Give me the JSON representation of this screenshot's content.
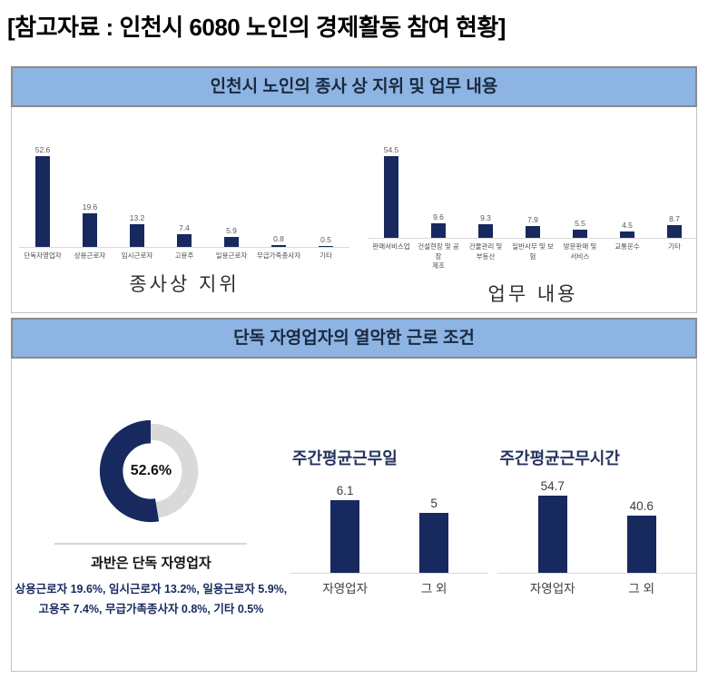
{
  "page": {
    "title": "[참고자료 : 인천시 6080 노인의 경제활동 참여 현황]"
  },
  "colors": {
    "navy": "#17295e",
    "header_bg": "#8db4e2",
    "ring_gray": "#d9d9d9"
  },
  "section1": {
    "header": "인천시 노인의 종사 상 지위 및 업무 내용"
  },
  "section2": {
    "header": "단독 자영업자의 열악한 근로 조건"
  },
  "chart_data": [
    {
      "id": "status",
      "type": "bar",
      "title": "종사상 지위",
      "categories": [
        "단독자영업자",
        "상용근로자",
        "임시근로자",
        "고용주",
        "일용근로자",
        "무급가족종사자",
        "기타"
      ],
      "values": [
        52.6,
        19.6,
        13.2,
        7.4,
        5.9,
        0.8,
        0.5
      ],
      "ylim": [
        0,
        55
      ],
      "bar_color": "#17295e",
      "grid": false,
      "value_labels": true
    },
    {
      "id": "work",
      "type": "bar",
      "title": "업무 내용",
      "categories": [
        "판매서비스업",
        "건설현장 및 공장\n제조",
        "건물관리 및\n부동산",
        "일반사무 및 보험",
        "방문판매 및\n서비스",
        "교통운수",
        "기타"
      ],
      "values": [
        54.5,
        9.6,
        9.3,
        7.9,
        5.5,
        4.5,
        8.7
      ],
      "ylim": [
        0,
        57
      ],
      "bar_color": "#17295e",
      "grid": false,
      "value_labels": true
    },
    {
      "id": "sole-proprietor-donut",
      "type": "pie",
      "title": "과반은 단독 자영업자",
      "center_label": "52.6%",
      "slices": [
        {
          "label": "단독 자영업자",
          "value": 52.6,
          "color": "#17295e"
        },
        {
          "label": "그 외",
          "value": 47.4,
          "color": "#d9d9d9"
        }
      ],
      "footnote_lines": [
        "상용근로자 19.6%, 임시근로자 13.2%, 일용근로자 5.9%,",
        "고용주 7.4%, 무급가족종사자 0.8%, 기타 0.5%"
      ]
    },
    {
      "id": "workdays",
      "type": "bar",
      "title": "주간평균근무일",
      "categories": [
        "자영업자",
        "그 외"
      ],
      "values": [
        6.1,
        5
      ],
      "ylim": [
        0,
        7
      ],
      "bar_color": "#17295e",
      "grid": false,
      "value_labels": true
    },
    {
      "id": "workhours",
      "type": "bar",
      "title": "주간평균근무시간",
      "categories": [
        "자영업자",
        "그 외"
      ],
      "values": [
        54.7,
        40.6
      ],
      "ylim": [
        0,
        60
      ],
      "bar_color": "#17295e",
      "grid": false,
      "value_labels": true
    }
  ]
}
